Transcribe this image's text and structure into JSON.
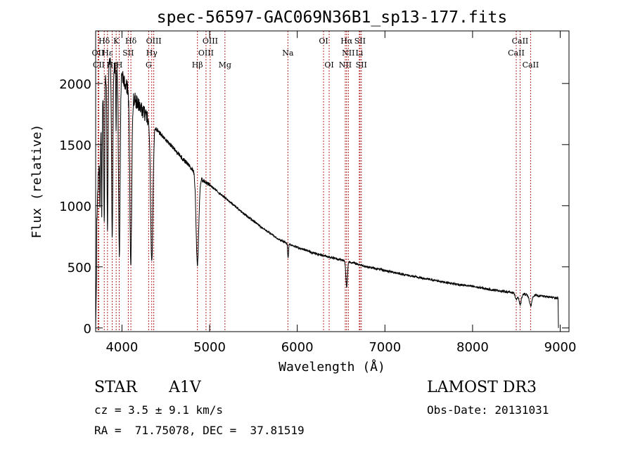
{
  "chart_data": {
    "type": "line",
    "title": "spec-56597-GAC069N36B1_sp13-177.fits",
    "xlabel": "Wavelength (Å)",
    "ylabel": "Flux (relative)",
    "xlim": [
      3700,
      9100
    ],
    "ylim": [
      -30,
      2430
    ],
    "xticks": [
      4000,
      5000,
      6000,
      7000,
      8000,
      9000
    ],
    "yticks": [
      0,
      500,
      1000,
      1500,
      2000
    ],
    "grid": false,
    "line_color": "#000000",
    "marker_color": "#b22222",
    "continuum": {
      "x": [
        3710,
        3750,
        3800,
        3850,
        3900,
        3950,
        4000,
        4050,
        4100,
        4150,
        4200,
        4250,
        4300,
        4400,
        4500,
        4600,
        4700,
        4800,
        4900,
        5000,
        5100,
        5200,
        5300,
        5400,
        5500,
        5600,
        5700,
        5800,
        5900,
        6000,
        6200,
        6400,
        6600,
        6800,
        7000,
        7200,
        7400,
        7600,
        7800,
        8000,
        8200,
        8400,
        8600,
        8800,
        8970
      ],
      "y": [
        850,
        1600,
        2010,
        2160,
        2150,
        2110,
        2060,
        1980,
        1920,
        1870,
        1810,
        1760,
        1700,
        1620,
        1540,
        1460,
        1380,
        1300,
        1220,
        1170,
        1110,
        1050,
        990,
        930,
        875,
        820,
        770,
        720,
        690,
        660,
        610,
        575,
        540,
        500,
        470,
        440,
        410,
        385,
        360,
        340,
        315,
        295,
        275,
        260,
        245
      ]
    },
    "absorption_lines": [
      {
        "center": 3750,
        "depth": 600,
        "width": 4
      },
      {
        "center": 3770,
        "depth": 800,
        "width": 4
      },
      {
        "center": 3798,
        "depth": 1100,
        "width": 5
      },
      {
        "center": 3835,
        "depth": 1300,
        "width": 6
      },
      {
        "center": 3889,
        "depth": 1450,
        "width": 7
      },
      {
        "center": 3933,
        "depth": 500,
        "width": 3
      },
      {
        "center": 3970,
        "depth": 1500,
        "width": 9
      },
      {
        "center": 4101,
        "depth": 1380,
        "width": 11
      },
      {
        "center": 4340,
        "depth": 1130,
        "width": 13
      },
      {
        "center": 4861,
        "depth": 730,
        "width": 15
      },
      {
        "center": 5895,
        "depth": 120,
        "width": 5
      },
      {
        "center": 6563,
        "depth": 210,
        "width": 9
      },
      {
        "center": 8498,
        "depth": 50,
        "width": 12
      },
      {
        "center": 8542,
        "depth": 90,
        "width": 14
      },
      {
        "center": 8662,
        "depth": 90,
        "width": 14
      }
    ],
    "line_markers": [
      {
        "label": "Hδ",
        "wavelength": 3798,
        "row": 1
      },
      {
        "label": "OII",
        "wavelength": 3727,
        "row": 2
      },
      {
        "label": "CII",
        "wavelength": 3736,
        "row": 3
      },
      {
        "label": "Hε",
        "wavelength": 3835,
        "row": 2
      },
      {
        "label": "K",
        "wavelength": 3934,
        "row": 1
      },
      {
        "label": "Hη",
        "wavelength": 3889,
        "row": 3
      },
      {
        "label": "H",
        "wavelength": 3969,
        "row": 3
      },
      {
        "label": "SII",
        "wavelength": 4072,
        "row": 2
      },
      {
        "label": "Hδ",
        "wavelength": 4102,
        "row": 1
      },
      {
        "label": "OIII",
        "wavelength": 4363,
        "row": 1
      },
      {
        "label": "Hγ",
        "wavelength": 4340,
        "row": 2
      },
      {
        "label": "G",
        "wavelength": 4305,
        "row": 3
      },
      {
        "label": "Hβ",
        "wavelength": 4861,
        "row": 3
      },
      {
        "label": "OIII",
        "wavelength": 5007,
        "row": 1
      },
      {
        "label": "OIII",
        "wavelength": 4959,
        "row": 2
      },
      {
        "label": "Mg",
        "wavelength": 5175,
        "row": 3
      },
      {
        "label": "Na",
        "wavelength": 5893,
        "row": 2
      },
      {
        "label": "OI",
        "wavelength": 6300,
        "row": 1
      },
      {
        "label": "OI",
        "wavelength": 6364,
        "row": 3
      },
      {
        "label": "Hα",
        "wavelength": 6563,
        "row": 1
      },
      {
        "label": "SII",
        "wavelength": 6716,
        "row": 1
      },
      {
        "label": "NII",
        "wavelength": 6583,
        "row": 2
      },
      {
        "label": "Li",
        "wavelength": 6708,
        "row": 2
      },
      {
        "label": "NII",
        "wavelength": 6548,
        "row": 3
      },
      {
        "label": "SII",
        "wavelength": 6731,
        "row": 3
      },
      {
        "label": "CaII",
        "wavelength": 8542,
        "row": 1
      },
      {
        "label": "CaII",
        "wavelength": 8498,
        "row": 2
      },
      {
        "label": "CaII",
        "wavelength": 8662,
        "row": 3
      }
    ]
  },
  "info": {
    "object_class": "STAR",
    "subclass": "A1V",
    "survey": "LAMOST DR3",
    "redshift_line": "cz = 3.5 ± 9.1 km/s",
    "obs_date_line": "Obs-Date: 20131031",
    "coords_line": "RA =  71.75078, DEC =  37.81519"
  }
}
